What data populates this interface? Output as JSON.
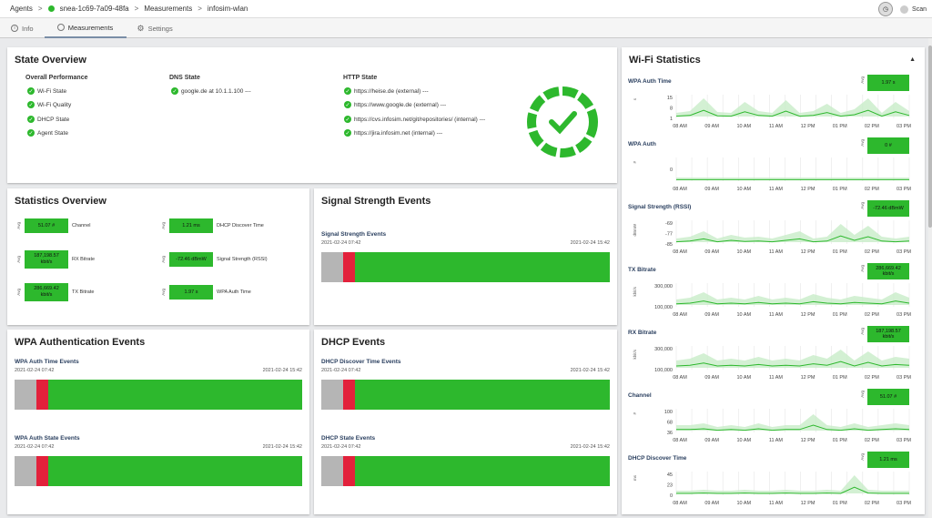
{
  "breadcrumb": {
    "agents": "Agents",
    "agent": "snea-1c69-7a09-48fa",
    "measurements": "Measurements",
    "current": "infosim-wlan"
  },
  "header": {
    "scan_label": "Scan"
  },
  "tabs": [
    {
      "label": "Info"
    },
    {
      "label": "Measurements"
    },
    {
      "label": "Settings"
    }
  ],
  "state_overview": {
    "title": "State Overview",
    "overall": {
      "heading": "Overall Performance",
      "items": [
        "Wi-Fi State",
        "Wi-Fi Quality",
        "DHCP State",
        "Agent State"
      ]
    },
    "dns": {
      "heading": "DNS State",
      "items": [
        "google.de at 10.1.1.100 ---"
      ]
    },
    "http": {
      "heading": "HTTP State",
      "items": [
        "https://heise.de (external) ---",
        "https://www.google.de (external) ---",
        "https://cvs.infosim.net/git/repositories/ (internal) ---",
        "https://jira.infosim.net (internal) ---"
      ]
    }
  },
  "statistics_overview": {
    "title": "Statistics Overview",
    "avg_label": "Avg",
    "items": [
      {
        "value": "51.07 #",
        "unit": "",
        "label": "Channel"
      },
      {
        "value": "1.21 ms",
        "unit": "",
        "label": "DHCP Discover Time"
      },
      {
        "value": "187,198.57",
        "unit": "kbit/s",
        "label": "RX Bitrate"
      },
      {
        "value": "-72.46 dBmW",
        "unit": "",
        "label": "Signal Strength (RSSI)"
      },
      {
        "value": "286,669.42",
        "unit": "kbit/s",
        "label": "TX Bitrate"
      },
      {
        "value": "1.97 s",
        "unit": "",
        "label": "WPA Auth Time"
      }
    ]
  },
  "signal_events": {
    "title": "Signal Strength Events",
    "sub": "Signal Strength Events",
    "start": "2021-02-24 07:42",
    "end": "2021-02-24 15:42"
  },
  "wpa_events": {
    "title": "WPA Authentication Events",
    "a": {
      "sub": "WPA Auth Time Events",
      "start": "2021-02-24 07:42",
      "end": "2021-02-24 15:42"
    },
    "b": {
      "sub": "WPA Auth State Events",
      "start": "2021-02-24 07:42",
      "end": "2021-02-24 15:42"
    }
  },
  "dhcp_events": {
    "title": "DHCP Events",
    "a": {
      "sub": "DHCP Discover Time Events",
      "start": "2021-02-24 07:42",
      "end": "2021-02-24 15:42"
    },
    "b": {
      "sub": "DHCP State Events",
      "start": "2021-02-24 07:42",
      "end": "2021-02-24 15:42"
    }
  },
  "wifi_stats": {
    "title": "Wi-Fi Statistics",
    "x_ticks": [
      "08 AM",
      "09 AM",
      "10 AM",
      "11 AM",
      "12 PM",
      "01 PM",
      "02 PM",
      "03 PM"
    ],
    "charts": [
      {
        "title": "WPA Auth Time",
        "value": "1.97 s",
        "unit": "",
        "ylabel": "s",
        "yticks": [
          "15",
          "8",
          "1"
        ]
      },
      {
        "title": "WPA Auth",
        "value": "0 #",
        "unit": "",
        "ylabel": "#",
        "yticks": [
          "0"
        ]
      },
      {
        "title": "Signal Strength (RSSI)",
        "value": "-72.46 dBmW",
        "unit": "",
        "ylabel": "dBmW",
        "yticks": [
          "-69",
          "-77",
          "-85"
        ]
      },
      {
        "title": "TX Bitrate",
        "value": "286,669.42",
        "unit": "kbit/s",
        "ylabel": "kbit/s",
        "yticks": [
          "300,000",
          "100,000"
        ]
      },
      {
        "title": "RX Bitrate",
        "value": "187,198.57",
        "unit": "kbit/s",
        "ylabel": "kbit/s",
        "yticks": [
          "300,000",
          "100,000"
        ]
      },
      {
        "title": "Channel",
        "value": "51.07 #",
        "unit": "",
        "ylabel": "#",
        "yticks": [
          "100",
          "68",
          "36"
        ]
      },
      {
        "title": "DHCP Discover Time",
        "value": "1.21 ms",
        "unit": "",
        "ylabel": "ms",
        "yticks": [
          "45",
          "23",
          "0"
        ]
      }
    ]
  },
  "colors": {
    "green": "#2db82d",
    "red": "#e2213b",
    "gray": "#b5b5b5"
  }
}
